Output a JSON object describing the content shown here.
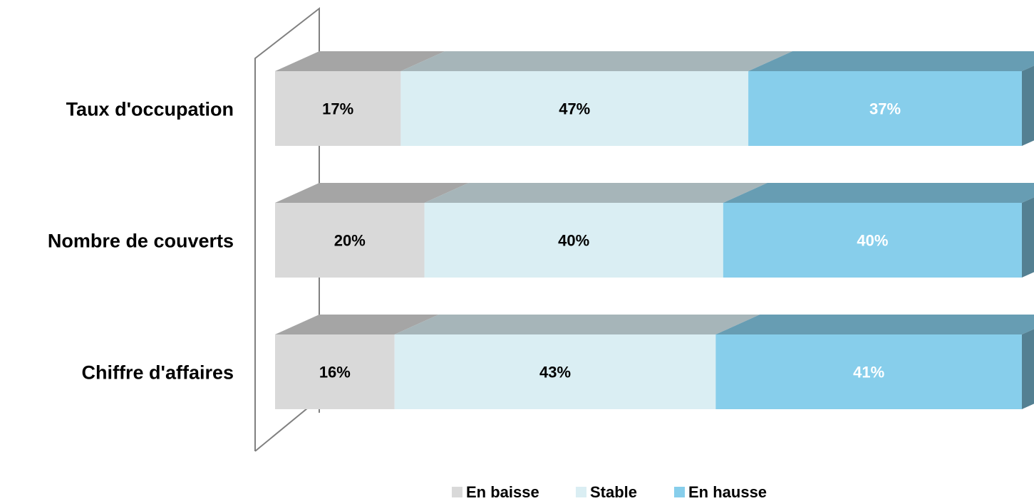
{
  "chart_data": {
    "type": "bar",
    "orientation": "horizontal",
    "stacked": "100%",
    "three_d": true,
    "categories": [
      "Taux d'occupation",
      "Nombre de couverts",
      "Chiffre d'affaires"
    ],
    "series": [
      {
        "name": "En baisse",
        "values": [
          17,
          20,
          16
        ],
        "labels": [
          "17%",
          "20%",
          "16%"
        ],
        "color": "#d9d9d9",
        "label_color": "#000000"
      },
      {
        "name": "Stable",
        "values": [
          47,
          40,
          43
        ],
        "labels": [
          "47%",
          "40%",
          "43%"
        ],
        "color": "#daeef3",
        "label_color": "#000000"
      },
      {
        "name": "En hausse",
        "values": [
          37,
          40,
          41
        ],
        "labels": [
          "37%",
          "40%",
          "41%"
        ],
        "color": "#87ceeb",
        "label_color": "#ffffff"
      }
    ],
    "legend_position": "bottom",
    "grid": false
  }
}
